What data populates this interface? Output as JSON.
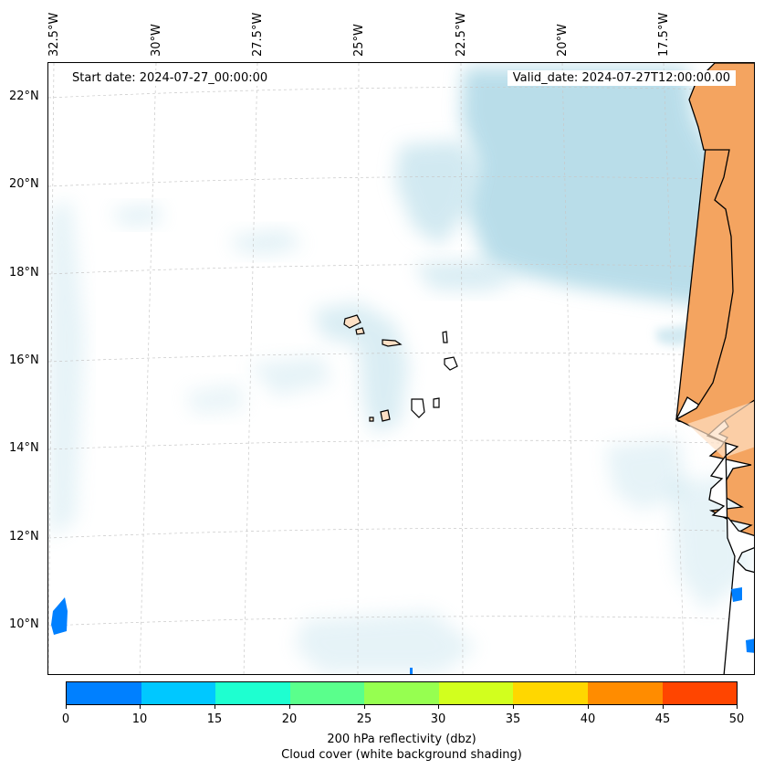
{
  "map": {
    "start_label": "Start date: 2024-07-27_00:00:00",
    "valid_label": "Valid_date: 2024-07-27T12:00:00.00",
    "lon_labels": [
      "32.5°W",
      "30°W",
      "27.5°W",
      "25°W",
      "22.5°W",
      "20°W",
      "17.5°W"
    ],
    "lat_labels": [
      "22°N",
      "20°N",
      "18°N",
      "16°N",
      "14°N",
      "12°N",
      "10°N"
    ],
    "colors": {
      "cloud": "#add8e6",
      "land_warm": "#f4a460",
      "land_island": "#fde0c5",
      "refl_low": "#0080ff"
    }
  },
  "colorbar": {
    "ticks": [
      "0",
      "10",
      "15",
      "20",
      "25",
      "30",
      "35",
      "40",
      "45",
      "50"
    ],
    "colors": [
      "#0080ff",
      "#00c8ff",
      "#1effd0",
      "#5aff8c",
      "#96ff50",
      "#d2ff1e",
      "#ffd700",
      "#ff8c00",
      "#ff4500"
    ],
    "label": "200 hPa reflectivity (dbz)",
    "sublabel": "Cloud cover (white background shading)"
  }
}
